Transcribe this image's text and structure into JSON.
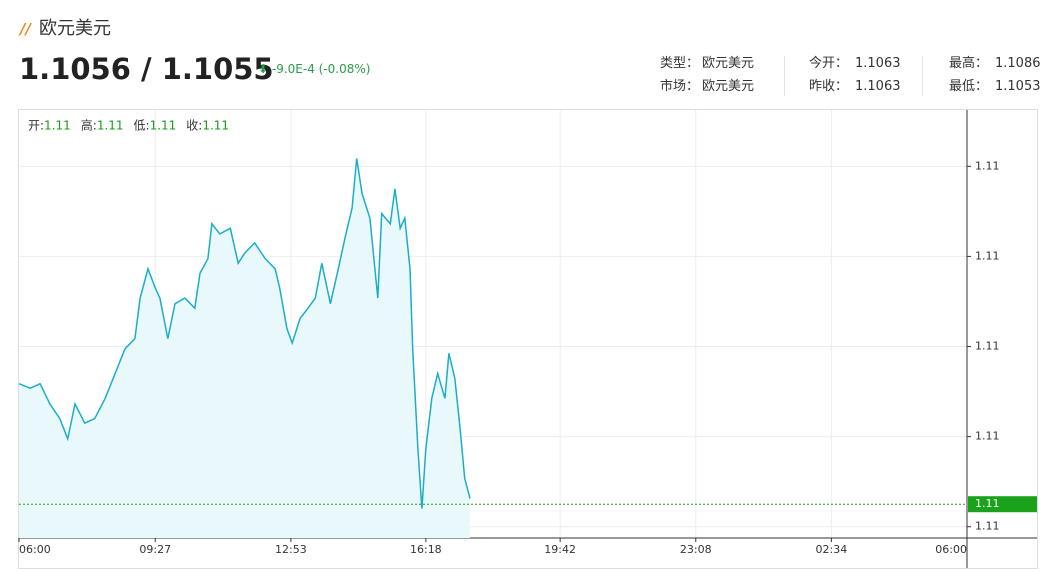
{
  "header": {
    "title": "欧元美元",
    "price": "1.1056 / 1.1055",
    "change": "-9.0E-4 (-0.08%)",
    "info": [
      [
        {
          "label": "类型：",
          "value": "欧元美元"
        },
        {
          "label": "今开：",
          "value": "1.1063"
        },
        {
          "label": "最高：",
          "value": "1.1086"
        }
      ],
      [
        {
          "label": "市场：",
          "value": "欧元美元"
        },
        {
          "label": "昨收：",
          "value": "1.1063"
        },
        {
          "label": "最低：",
          "value": "1.1053"
        }
      ]
    ]
  },
  "ohlc": [
    {
      "label": "开:",
      "value": "1.11"
    },
    {
      "label": "高:",
      "value": "1.11"
    },
    {
      "label": "低:",
      "value": "1.11"
    },
    {
      "label": "收:",
      "value": "1.11"
    }
  ],
  "chart_data": {
    "type": "line",
    "color": "#1aaec8",
    "area_color": "#e9f8fa",
    "x": [
      0,
      17,
      32,
      47,
      62,
      74,
      85,
      100,
      115,
      131,
      146,
      161,
      176,
      184,
      196,
      207,
      214,
      226,
      237,
      252,
      267,
      275,
      287,
      293,
      305,
      321,
      333,
      343,
      358,
      374,
      389,
      396,
      407,
      415,
      427,
      439,
      450,
      460,
      473,
      485,
      495,
      506,
      513,
      521,
      533,
      545,
      551,
      564,
      571,
      579,
      586,
      594,
      598,
      606,
      612,
      618,
      627,
      636,
      647,
      653,
      662,
      670,
      677,
      685
    ],
    "values": [
      1.10657,
      1.10653,
      1.10657,
      1.10639,
      1.10626,
      1.10608,
      1.10639,
      1.10622,
      1.10626,
      1.10644,
      1.10666,
      1.10688,
      1.10697,
      1.10733,
      1.10759,
      1.10742,
      1.10733,
      1.10697,
      1.10728,
      1.10733,
      1.10724,
      1.10755,
      1.10768,
      1.10799,
      1.1079,
      1.10795,
      1.10764,
      1.10773,
      1.10782,
      1.10768,
      1.10759,
      1.10742,
      1.10706,
      1.10693,
      1.10715,
      1.10724,
      1.10733,
      1.10764,
      1.10728,
      1.10759,
      1.10786,
      1.10813,
      1.10857,
      1.10826,
      1.10804,
      1.10733,
      1.10808,
      1.10799,
      1.1083,
      1.10795,
      1.10804,
      1.10759,
      1.10688,
      1.10599,
      1.10546,
      1.10599,
      1.10644,
      1.10666,
      1.10644,
      1.10684,
      1.10662,
      1.10617,
      1.10573,
      1.10555
    ],
    "xlim": [
      0,
      1440
    ],
    "xticks": [
      {
        "value": 0,
        "label": "06:00"
      },
      {
        "value": 207,
        "label": "09:27"
      },
      {
        "value": 413,
        "label": "12:53"
      },
      {
        "value": 618,
        "label": "16:18"
      },
      {
        "value": 822,
        "label": "19:42"
      },
      {
        "value": 1028,
        "label": "23:08"
      },
      {
        "value": 1234,
        "label": "02:34"
      },
      {
        "value": 1440,
        "label": "06:00"
      }
    ],
    "ylim": [
      1.1052,
      1.109
    ],
    "yticks": [
      {
        "value": 1.1053,
        "label": "1.11"
      },
      {
        "value": 1.1061,
        "label": "1.11"
      },
      {
        "value": 1.1069,
        "label": "1.11"
      },
      {
        "value": 1.1077,
        "label": "1.11"
      },
      {
        "value": 1.1085,
        "label": "1.11"
      }
    ],
    "current": {
      "value": 1.1055,
      "label": "1.11",
      "color": "#1aa31a"
    },
    "grid": true
  }
}
